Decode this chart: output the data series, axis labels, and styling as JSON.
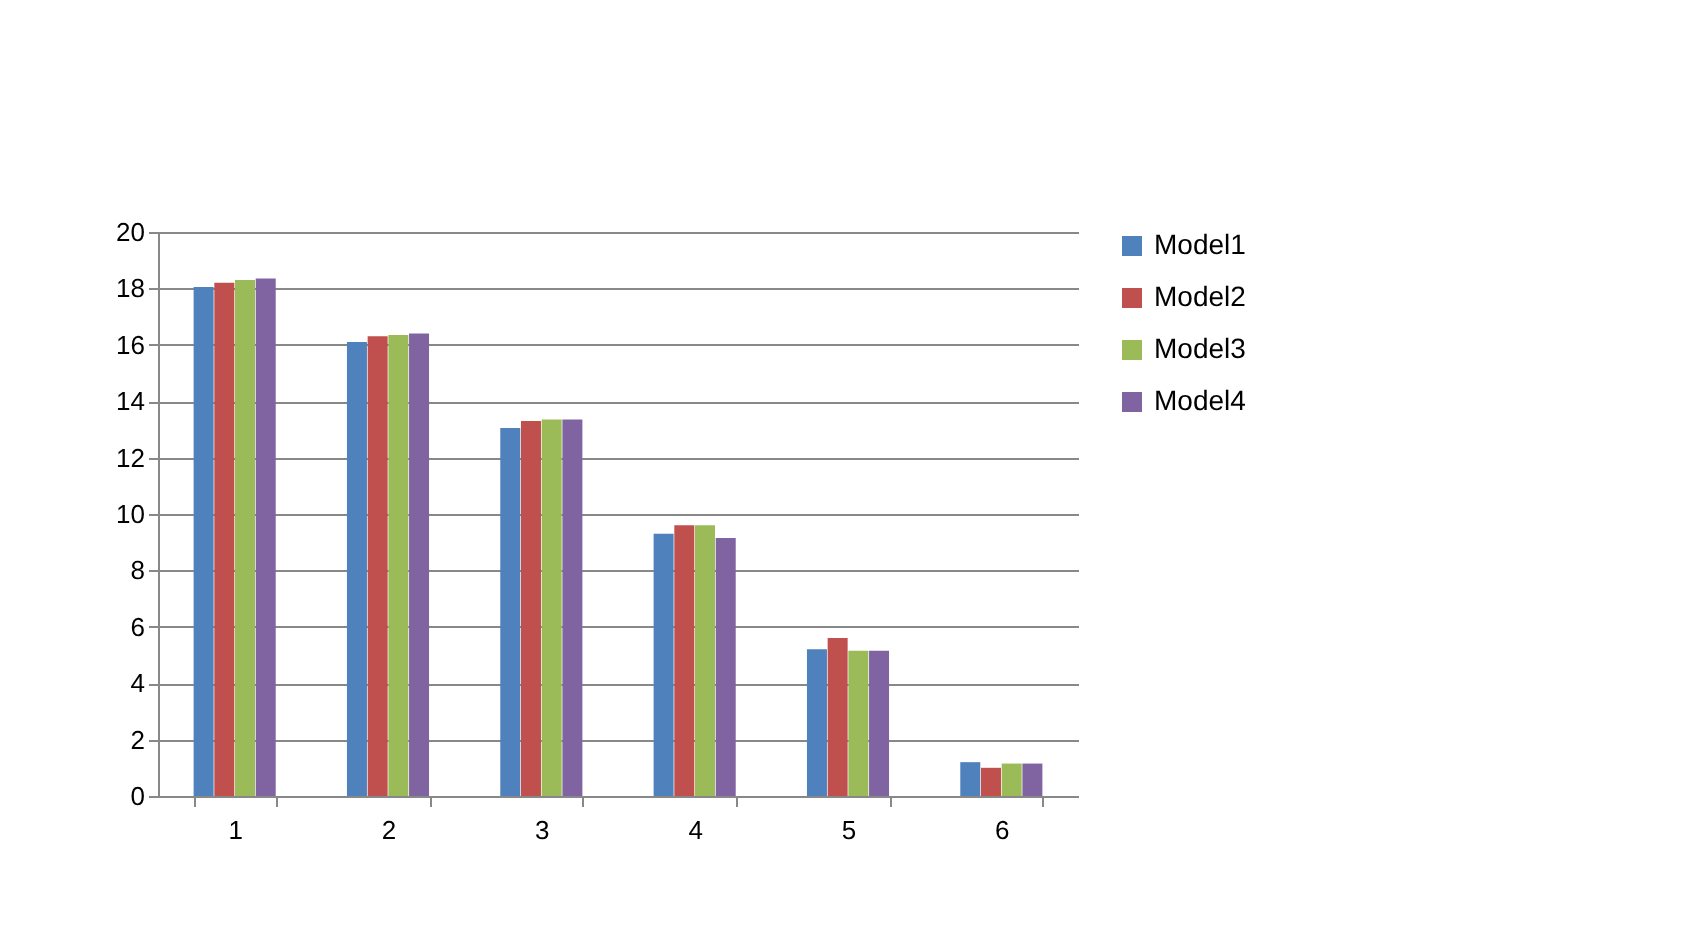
{
  "chart_data": {
    "type": "bar",
    "categories": [
      "1",
      "2",
      "3",
      "4",
      "5",
      "6"
    ],
    "series": [
      {
        "name": "Model1",
        "color": "#4f81bd",
        "values": [
          18.05,
          16.1,
          13.05,
          9.3,
          5.2,
          1.2
        ]
      },
      {
        "name": "Model2",
        "color": "#c0504d",
        "values": [
          18.2,
          16.3,
          13.3,
          9.6,
          5.6,
          1.0
        ]
      },
      {
        "name": "Model3",
        "color": "#9bbb59",
        "values": [
          18.3,
          16.35,
          13.35,
          9.6,
          5.15,
          1.15
        ]
      },
      {
        "name": "Model4",
        "color": "#8064a2",
        "values": [
          18.35,
          16.4,
          13.35,
          9.15,
          5.15,
          1.15
        ]
      }
    ],
    "ylim": [
      0,
      20
    ],
    "yticks": [
      0,
      2,
      4,
      6,
      8,
      10,
      12,
      14,
      16,
      18,
      20
    ],
    "grid": "y",
    "legend": "right"
  }
}
